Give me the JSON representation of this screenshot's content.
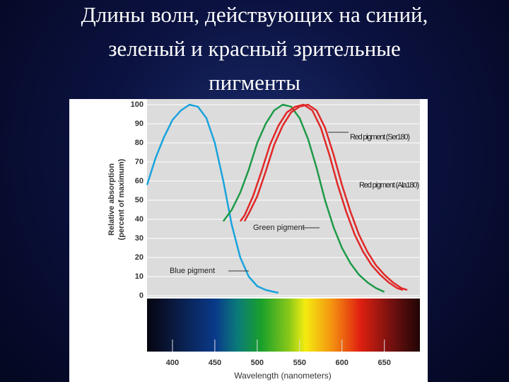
{
  "chart_data": {
    "type": "line",
    "title": [
      "Длины волн, действующих на синий,",
      "зеленый и красный зрительные",
      "пигменты"
    ],
    "xlabel": "Wavelength (nanometers)",
    "ylabel": [
      "Relative absorption",
      "(percent of maximum)"
    ],
    "xlim": [
      370,
      692
    ],
    "ylim": [
      0,
      100
    ],
    "xticks": [
      400,
      450,
      500,
      550,
      600,
      650
    ],
    "yticks": [
      0,
      10,
      20,
      30,
      40,
      50,
      60,
      70,
      80,
      90,
      100
    ],
    "grid": true,
    "series": [
      {
        "name": "Blue pigment",
        "color": "#1aa3dc",
        "x": [
          370,
          380,
          390,
          400,
          410,
          420,
          430,
          440,
          450,
          460,
          470,
          480,
          490,
          500,
          510,
          520,
          525
        ],
        "values": [
          58,
          72,
          83,
          92,
          97,
          100,
          99,
          93,
          80,
          60,
          37,
          20,
          10,
          5,
          3,
          2,
          1.5
        ]
      },
      {
        "name": "Green pigment",
        "color": "#1e9a48",
        "x": [
          460,
          470,
          480,
          490,
          500,
          510,
          520,
          530,
          540,
          550,
          560,
          570,
          580,
          590,
          600,
          610,
          620,
          630,
          640,
          650
        ],
        "values": [
          39,
          45,
          54,
          66,
          80,
          90,
          97,
          100,
          99,
          93,
          82,
          67,
          50,
          36,
          25,
          17,
          11,
          7,
          4,
          2
        ]
      },
      {
        "name": "Red pigment (Ser180)",
        "color": "#e02828",
        "x": [
          485,
          490,
          500,
          510,
          520,
          530,
          540,
          550,
          560,
          570,
          580,
          590,
          600,
          610,
          620,
          630,
          640,
          650,
          660,
          670,
          677
        ],
        "values": [
          39,
          43,
          52,
          65,
          79,
          89,
          96,
          99,
          100,
          97,
          88,
          74,
          58,
          44,
          32,
          23,
          16,
          11,
          7,
          4,
          3
        ]
      },
      {
        "name": "Red pigment (Ala180)",
        "color": "#e02828",
        "x": [
          480,
          485,
          495,
          505,
          515,
          525,
          535,
          545,
          555,
          565,
          575,
          585,
          595,
          605,
          615,
          625,
          635,
          645,
          655,
          665,
          672
        ],
        "values": [
          39,
          42,
          52,
          65,
          79,
          89,
          96,
          99,
          100,
          97,
          88,
          74,
          58,
          44,
          32,
          23,
          16,
          11,
          7,
          4,
          3
        ]
      }
    ]
  }
}
